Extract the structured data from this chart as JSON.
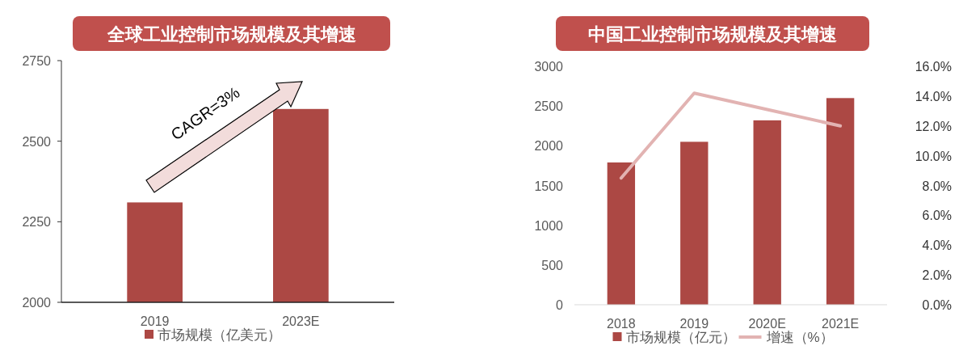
{
  "chart_data": [
    {
      "type": "bar",
      "title": "全球工业控制市场规模及其增速",
      "categories": [
        "2019",
        "2023E"
      ],
      "series": [
        {
          "name": "市场规模（亿美元）",
          "color": "#ac4844",
          "values": [
            2310,
            2600
          ]
        }
      ],
      "ylim": [
        2000,
        2750
      ],
      "yticks": [
        2000,
        2250,
        2500,
        2750
      ],
      "legend": "bottom",
      "annotations": [
        "CAGR=3%"
      ]
    },
    {
      "type": "bar",
      "title": "中国工业控制市场规模及其增速",
      "categories": [
        "2018",
        "2019",
        "2020E",
        "2021E"
      ],
      "series": [
        {
          "name": "市场规模（亿元）",
          "color": "#ac4844",
          "values": [
            1790,
            2050,
            2320,
            2600
          ]
        },
        {
          "name": "增速（%）",
          "type": "line",
          "axis": "y2",
          "color": "#e2b3b2",
          "values": [
            8.5,
            14.2,
            13.1,
            12.0
          ]
        }
      ],
      "ylim": [
        0,
        3000
      ],
      "yticks": [
        0,
        500,
        1000,
        1500,
        2000,
        2500,
        3000
      ],
      "y2lim": [
        0,
        16
      ],
      "y2ticks": [
        {
          "value": 0,
          "label": "0.0%"
        },
        {
          "value": 2,
          "label": "2.0%"
        },
        {
          "value": 4,
          "label": "4.0%"
        },
        {
          "value": 6,
          "label": "6.0%"
        },
        {
          "value": 8,
          "label": "8.0%"
        },
        {
          "value": 10,
          "label": "10.0%"
        },
        {
          "value": 12,
          "label": "12.0%"
        },
        {
          "value": 14,
          "label": "14.0%"
        },
        {
          "value": 16,
          "label": "16.0%"
        }
      ],
      "legend": "bottom"
    }
  ]
}
